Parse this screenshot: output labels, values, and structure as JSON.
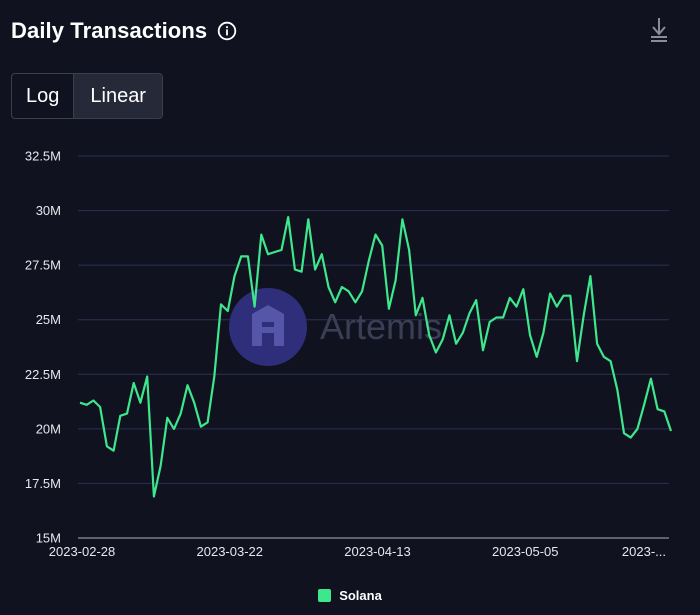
{
  "header": {
    "title": "Daily Transactions",
    "info_icon": "info-circle-icon",
    "download_icon": "download-icon"
  },
  "scale_toggle": {
    "options": [
      "Log",
      "Linear"
    ],
    "selected": "Linear"
  },
  "watermark": {
    "text": "Artemis",
    "logo_icon": "artemis-logo-icon"
  },
  "colors": {
    "background": "#10121f",
    "series": "#3ee68c",
    "grid": "#2c3150",
    "watermark_circle": "#2e2e7a"
  },
  "chart_data": {
    "type": "line",
    "title": "Daily Transactions",
    "xlabel": "",
    "ylabel": "",
    "ylim": [
      15000000,
      32500000
    ],
    "yticks": [
      15000000,
      17500000,
      20000000,
      22500000,
      25000000,
      27500000,
      30000000,
      32500000
    ],
    "ytick_labels": [
      "15M",
      "17.5M",
      "20M",
      "22.5M",
      "25M",
      "27.5M",
      "30M",
      "32.5M"
    ],
    "xtick_labels": [
      "2023-02-28",
      "2023-03-22",
      "2023-04-13",
      "2023-05-05",
      "2023-..."
    ],
    "x_start": "2023-02-28",
    "x_end": "2023-05-31",
    "grid": true,
    "legend": "bottom-center",
    "series": [
      {
        "name": "Solana",
        "values": [
          21.2,
          21.1,
          21.3,
          21.0,
          19.2,
          19.0,
          20.6,
          20.7,
          22.1,
          21.2,
          22.4,
          16.9,
          18.3,
          20.5,
          20.0,
          20.7,
          22.0,
          21.2,
          20.1,
          20.3,
          22.4,
          25.7,
          25.4,
          27.0,
          27.9,
          27.9,
          25.6,
          28.9,
          28.0,
          28.1,
          28.2,
          29.7,
          27.3,
          27.2,
          29.6,
          27.3,
          28.0,
          26.5,
          25.8,
          26.5,
          26.3,
          25.8,
          26.3,
          27.7,
          28.9,
          28.4,
          25.5,
          26.8,
          29.6,
          28.2,
          25.2,
          26.0,
          24.3,
          23.5,
          24.1,
          25.2,
          23.9,
          24.4,
          25.3,
          25.9,
          23.6,
          24.9,
          25.1,
          25.1,
          26.0,
          25.6,
          26.4,
          24.3,
          23.3,
          24.4,
          26.2,
          25.6,
          26.1,
          26.1,
          23.1,
          25.2,
          27.0,
          23.9,
          23.3,
          23.1,
          21.8,
          19.8,
          19.6,
          20.0,
          21.1,
          22.3,
          20.9,
          20.8,
          19.9
        ]
      }
    ]
  }
}
